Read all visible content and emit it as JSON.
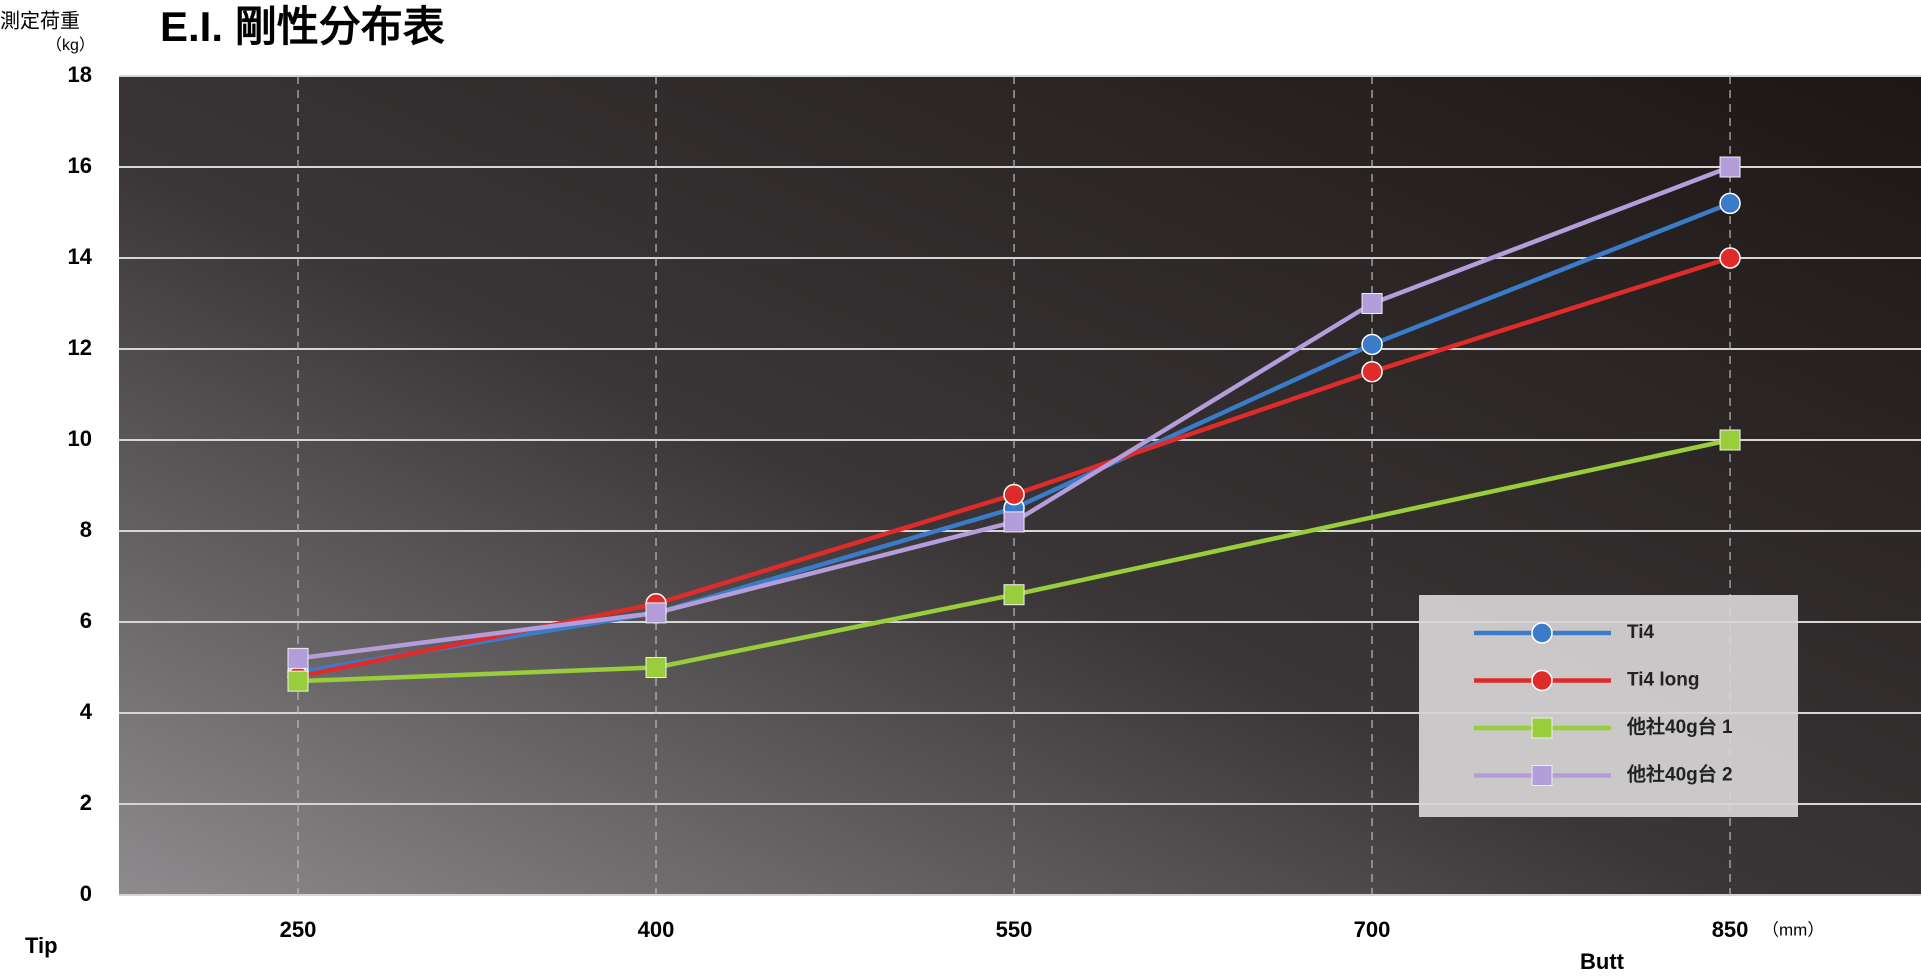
{
  "chart_data": {
    "type": "line",
    "title": "E.I. 剛性分布表",
    "y_label": "測定荷重",
    "y_unit": "（kg）",
    "x_unit": "（mm）",
    "x_start_label": "Tip",
    "x_end_label": "Butt",
    "x": [
      250,
      400,
      550,
      700,
      850
    ],
    "xlim": [
      175,
      930
    ],
    "xticks": [
      250,
      400,
      550,
      700,
      850
    ],
    "ylim": [
      0,
      18
    ],
    "yticks": [
      0,
      2,
      4,
      6,
      8,
      10,
      12,
      14,
      16,
      18
    ],
    "grid": true,
    "series": [
      {
        "name": "Ti4",
        "color": "#3a7cc9",
        "marker": "circle",
        "values": [
          4.9,
          6.2,
          8.5,
          12.1,
          15.2
        ]
      },
      {
        "name": "Ti4 long",
        "color": "#e02b2b",
        "marker": "circle",
        "values": [
          4.8,
          6.4,
          8.8,
          11.5,
          14.0
        ]
      },
      {
        "name": "他社40g台 1",
        "color": "#9acd3c",
        "marker": "square",
        "x": [
          250,
          400,
          550,
          850
        ],
        "values": [
          4.7,
          5.0,
          6.6,
          10.0
        ]
      },
      {
        "name": "他社40g台 2",
        "color": "#b39ddb",
        "marker": "square",
        "values": [
          5.2,
          6.2,
          8.2,
          13.0,
          16.0
        ]
      }
    ]
  }
}
